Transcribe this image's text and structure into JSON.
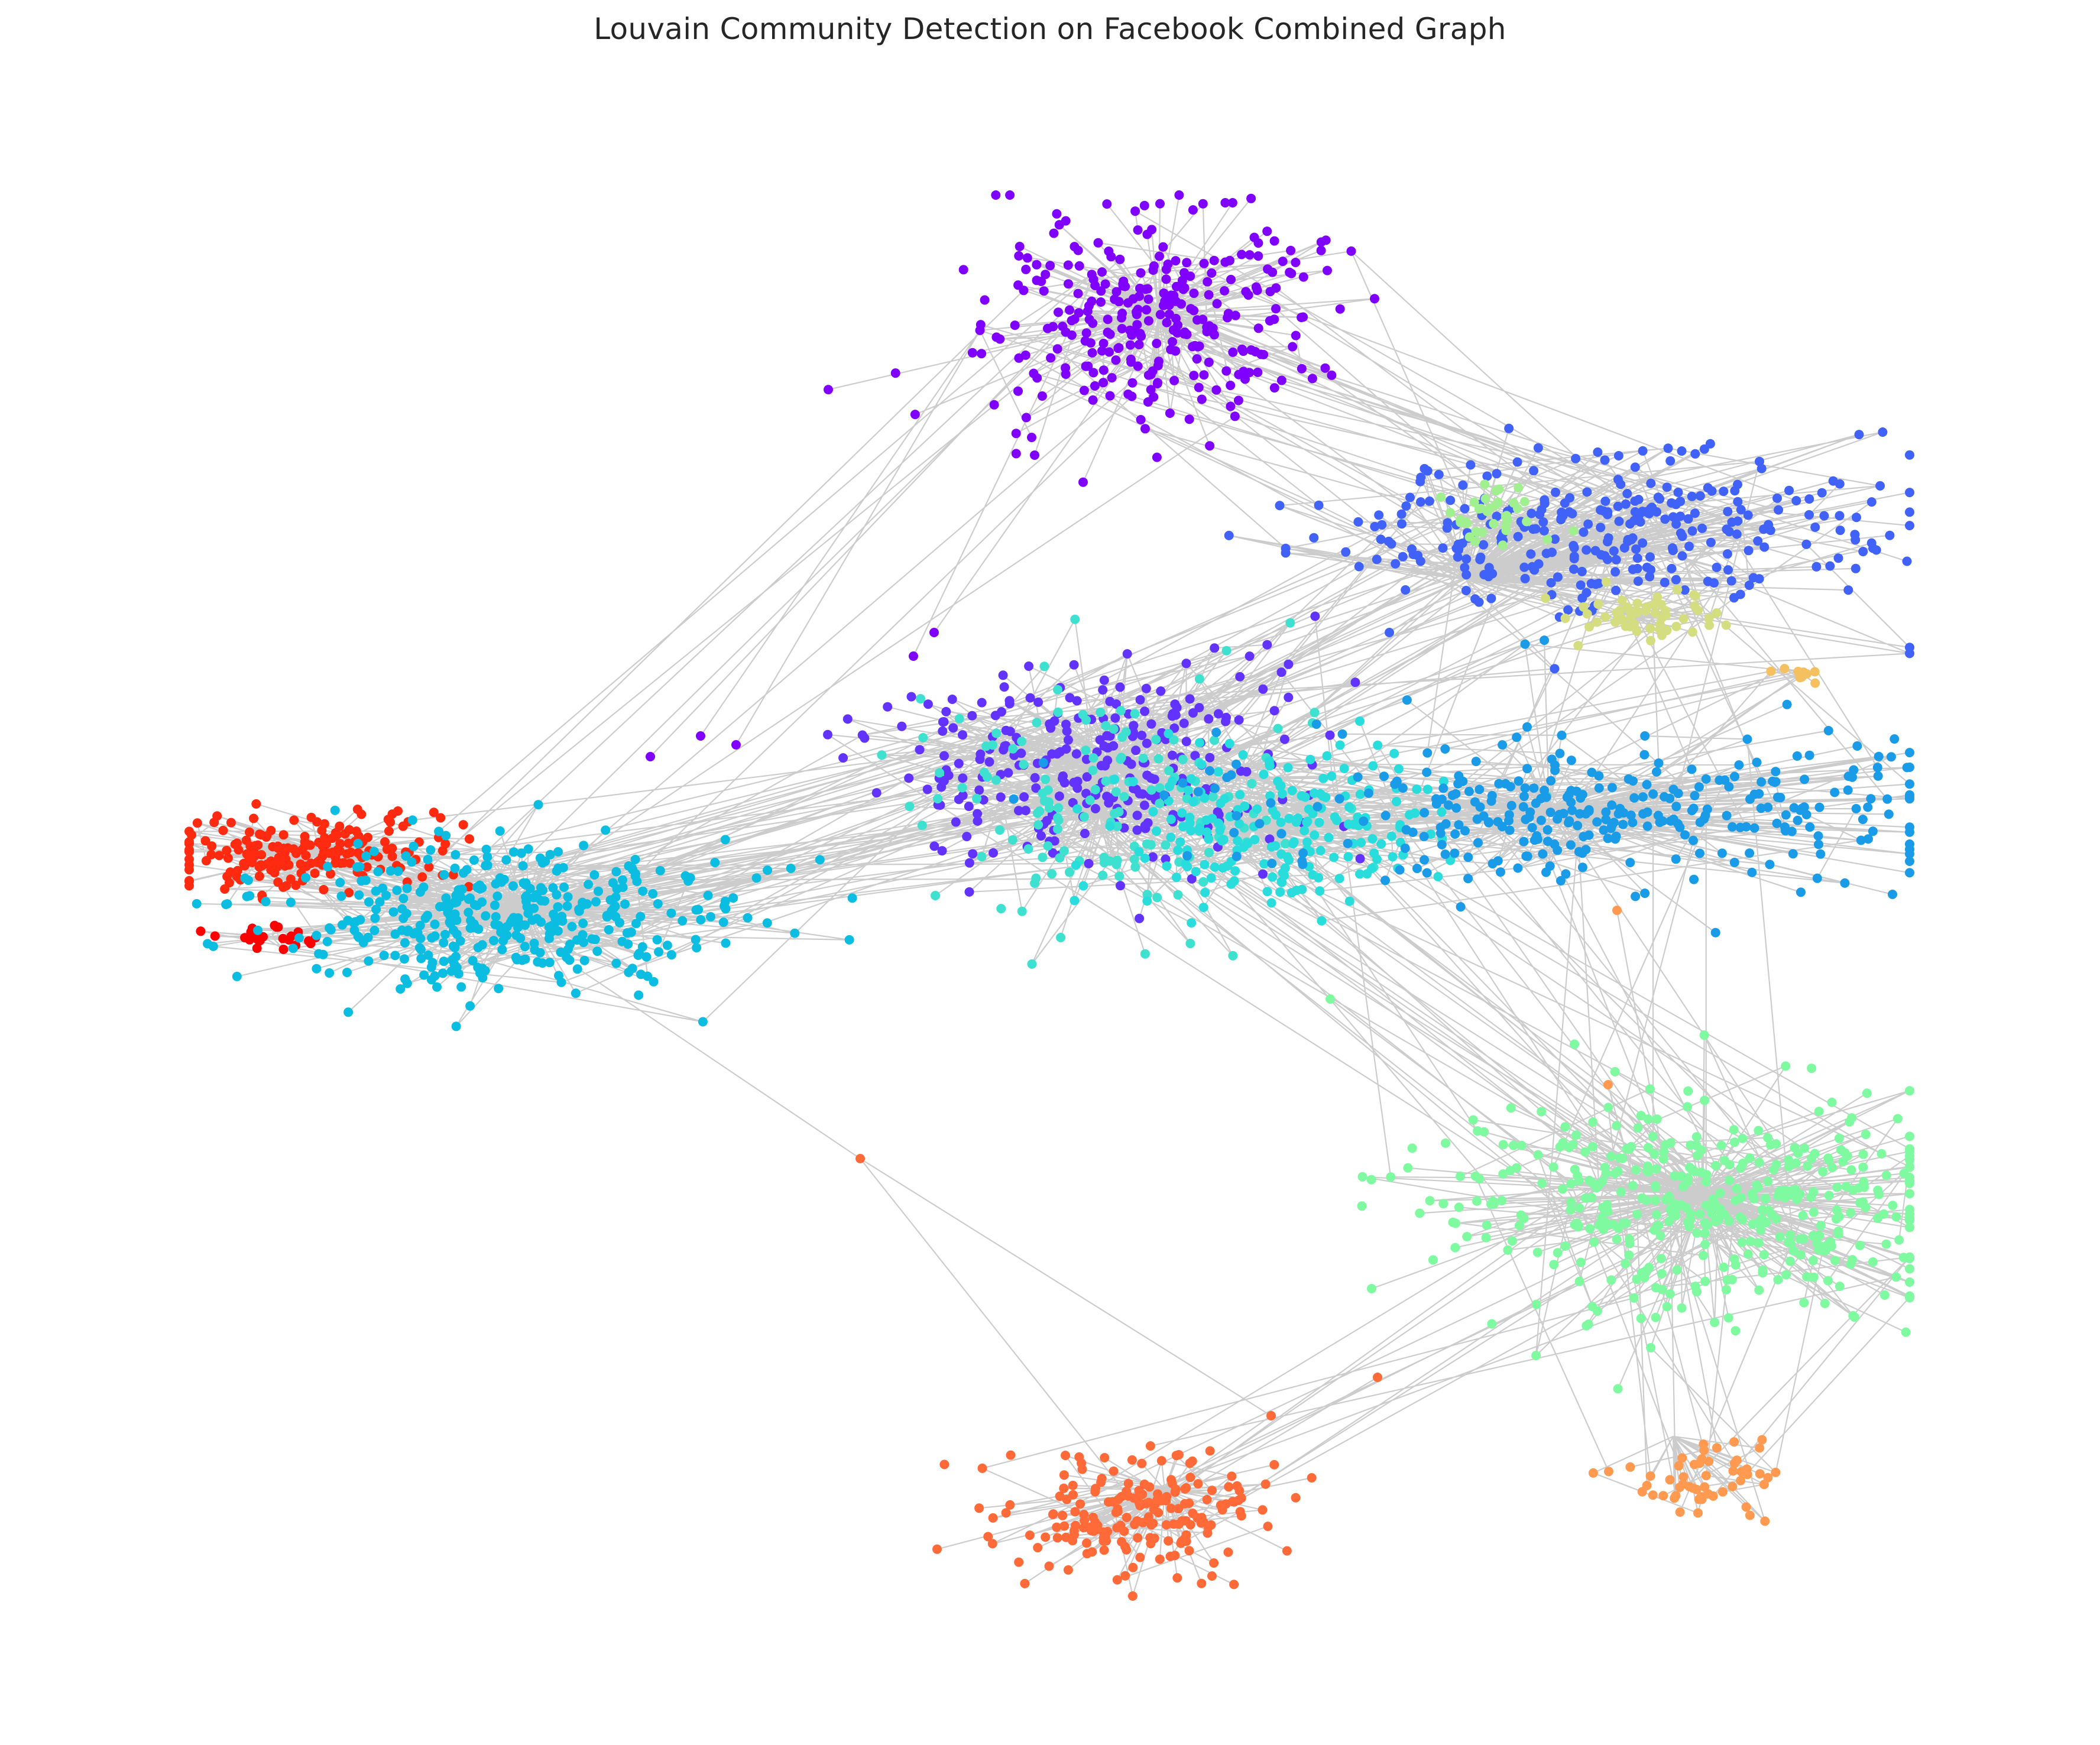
{
  "title": "Louvain Community Detection on Facebook Combined Graph",
  "communities": [
    {
      "id": "purple-top",
      "color": "#8000ff"
    },
    {
      "id": "blue-top-right",
      "color": "#4062f9"
    },
    {
      "id": "light-green-top-right",
      "color": "#a0f090"
    },
    {
      "id": "khaki",
      "color": "#d4dd80"
    },
    {
      "id": "gold-small",
      "color": "#f4c060"
    },
    {
      "id": "violet-center",
      "color": "#6233ff"
    },
    {
      "id": "turquoise-center",
      "color": "#3ee0d0"
    },
    {
      "id": "cyan-center",
      "color": "#2adddd"
    },
    {
      "id": "azure-right",
      "color": "#1a9be8"
    },
    {
      "id": "red-left",
      "color": "#ff2a10"
    },
    {
      "id": "red-small",
      "color": "#ff0000"
    },
    {
      "id": "sky-left",
      "color": "#0bbde0"
    },
    {
      "id": "mint-bottom-right",
      "color": "#80faa0"
    },
    {
      "id": "orange-bottom",
      "color": "#ff6a38"
    },
    {
      "id": "light-orange-bottom-right",
      "color": "#ff9a50"
    }
  ],
  "edge_color": "#000000"
}
